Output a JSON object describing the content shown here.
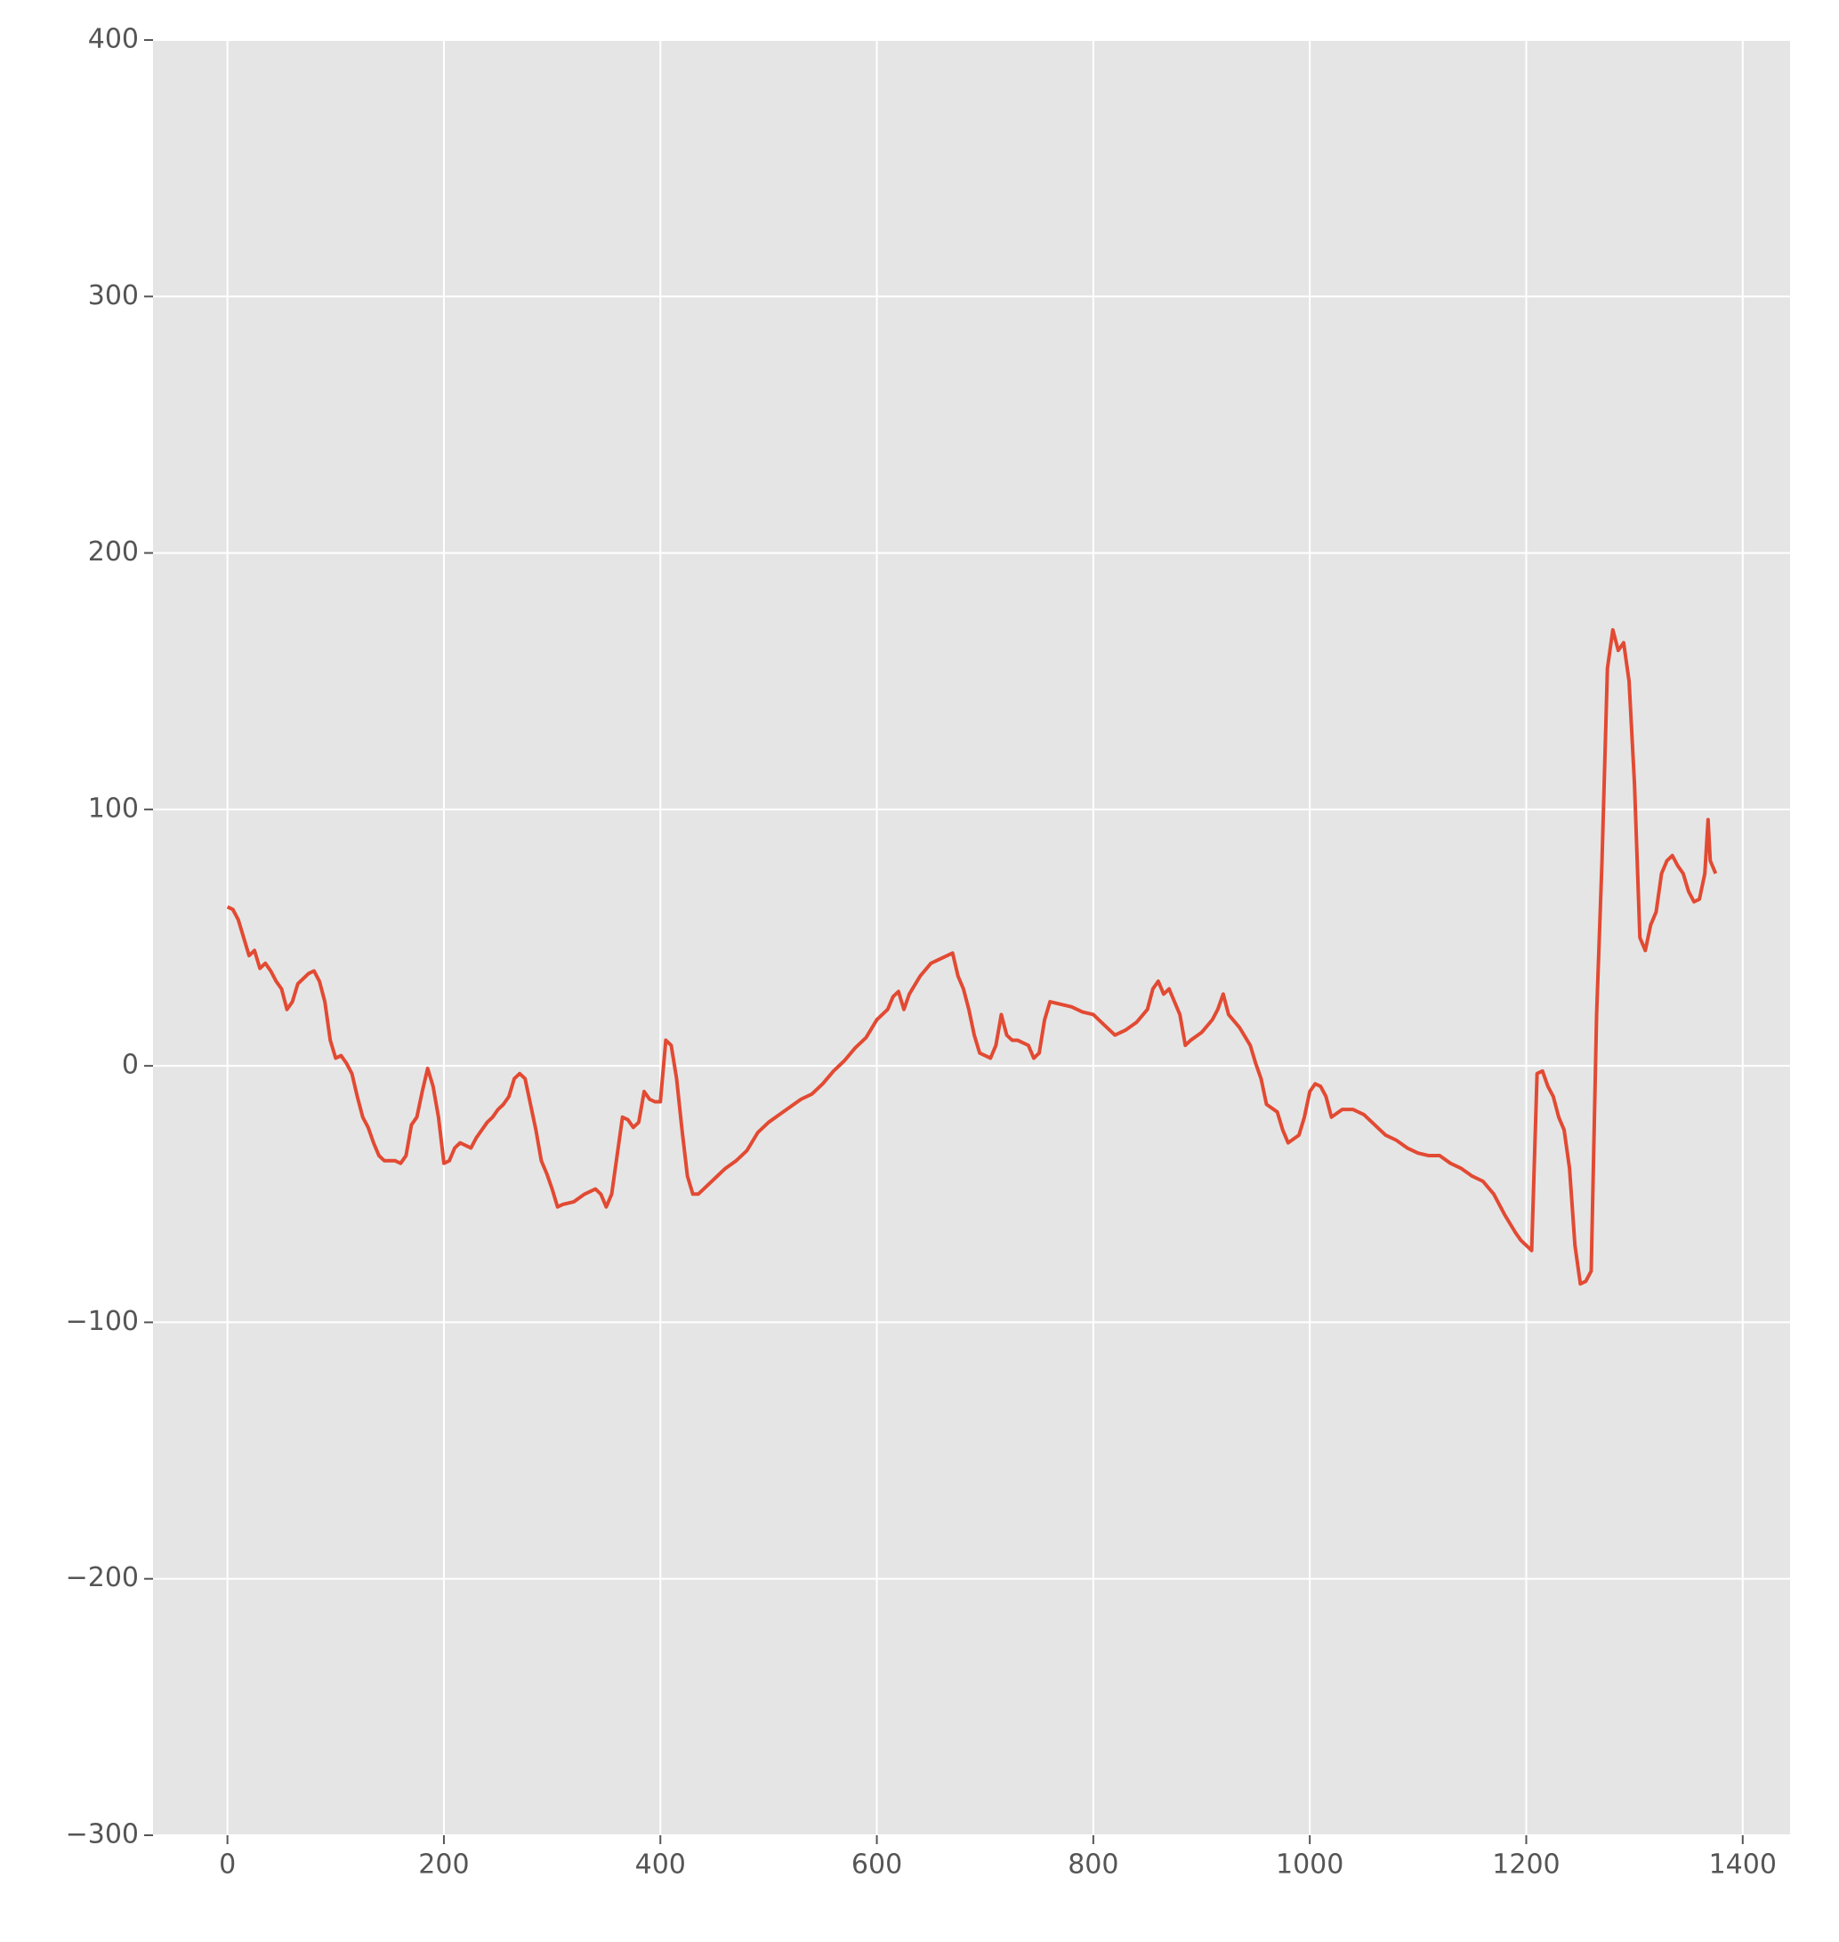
{
  "chart_data": {
    "type": "line",
    "x": [
      0,
      5,
      10,
      15,
      20,
      25,
      30,
      35,
      40,
      45,
      50,
      55,
      60,
      65,
      70,
      75,
      80,
      85,
      90,
      95,
      100,
      105,
      110,
      115,
      120,
      125,
      130,
      135,
      140,
      145,
      150,
      155,
      160,
      165,
      170,
      175,
      180,
      185,
      190,
      195,
      200,
      205,
      210,
      215,
      220,
      225,
      230,
      235,
      240,
      245,
      250,
      255,
      260,
      265,
      270,
      275,
      280,
      285,
      290,
      295,
      300,
      305,
      310,
      320,
      330,
      340,
      345,
      350,
      355,
      360,
      365,
      370,
      375,
      380,
      385,
      390,
      395,
      400,
      405,
      410,
      415,
      420,
      425,
      430,
      435,
      440,
      450,
      460,
      470,
      480,
      490,
      500,
      510,
      520,
      530,
      540,
      550,
      560,
      570,
      580,
      590,
      600,
      610,
      615,
      620,
      625,
      630,
      640,
      650,
      660,
      665,
      670,
      675,
      680,
      685,
      690,
      695,
      700,
      705,
      710,
      715,
      720,
      725,
      730,
      740,
      745,
      750,
      755,
      760,
      770,
      780,
      790,
      800,
      810,
      820,
      830,
      840,
      850,
      855,
      860,
      865,
      870,
      875,
      880,
      885,
      890,
      900,
      910,
      915,
      920,
      925,
      935,
      945,
      950,
      955,
      960,
      970,
      975,
      980,
      990,
      995,
      1000,
      1005,
      1010,
      1015,
      1020,
      1030,
      1040,
      1050,
      1060,
      1070,
      1080,
      1090,
      1100,
      1110,
      1120,
      1130,
      1140,
      1150,
      1160,
      1170,
      1180,
      1190,
      1195,
      1200,
      1205,
      1210,
      1215,
      1220,
      1225,
      1230,
      1235,
      1240,
      1245,
      1250,
      1255,
      1260,
      1265,
      1270,
      1275,
      1280,
      1285,
      1290,
      1295,
      1300,
      1305,
      1310,
      1315,
      1320,
      1325,
      1330,
      1335,
      1340,
      1345,
      1350,
      1355,
      1360,
      1365,
      1368,
      1370,
      1375
    ],
    "series": [
      {
        "color": "#E24A33",
        "values": [
          62,
          61,
          57,
          50,
          43,
          45,
          38,
          40,
          37,
          33,
          30,
          22,
          25,
          32,
          34,
          36,
          37,
          33,
          25,
          10,
          3,
          4,
          1,
          -3,
          -12,
          -20,
          -24,
          -30,
          -35,
          -37,
          -37,
          -37,
          -38,
          -35,
          -23,
          -20,
          -10,
          -1,
          -8,
          -20,
          -38,
          -37,
          -32,
          -30,
          -31,
          -32,
          -28,
          -25,
          -22,
          -20,
          -17,
          -15,
          -12,
          -5,
          -3,
          -5,
          -15,
          -25,
          -37,
          -42,
          -48,
          -55,
          -54,
          -53,
          -50,
          -48,
          -50,
          -55,
          -50,
          -35,
          -20,
          -21,
          -24,
          -22,
          -10,
          -13,
          -14,
          -14,
          10,
          8,
          -5,
          -25,
          -43,
          -50,
          -50,
          -48,
          -44,
          -40,
          -37,
          -33,
          -26,
          -22,
          -19,
          -16,
          -13,
          -11,
          -7,
          -2,
          2,
          7,
          11,
          18,
          22,
          27,
          29,
          22,
          28,
          35,
          40,
          42,
          43,
          44,
          35,
          30,
          22,
          12,
          5,
          4,
          3,
          8,
          20,
          12,
          10,
          10,
          8,
          3,
          5,
          18,
          25,
          24,
          23,
          21,
          20,
          16,
          12,
          14,
          17,
          22,
          30,
          33,
          28,
          30,
          25,
          20,
          8,
          10,
          13,
          18,
          22,
          28,
          20,
          15,
          8,
          1,
          -5,
          -15,
          -18,
          -25,
          -30,
          -27,
          -20,
          -10,
          -7,
          -8,
          -12,
          -20,
          -17,
          -17,
          -19,
          -23,
          -27,
          -29,
          -32,
          -34,
          -35,
          -35,
          -38,
          -40,
          -43,
          -45,
          -50,
          -58,
          -65,
          -68,
          -70,
          -72,
          -3,
          -2,
          -8,
          -12,
          -20,
          -25,
          -40,
          -70,
          -85,
          -84,
          -80,
          20,
          80,
          155,
          170,
          162,
          165,
          150,
          110,
          50,
          45,
          55,
          60,
          75,
          80,
          82,
          78,
          75,
          68,
          64,
          65,
          75,
          96,
          80,
          75
        ]
      }
    ],
    "xlim": [
      -68.75,
      1443.75
    ],
    "ylim": [
      -300,
      400
    ],
    "xticks": [
      0,
      200,
      400,
      600,
      800,
      1000,
      1200,
      1400
    ],
    "yticks": [
      {
        "value": -300,
        "label": "−300"
      },
      {
        "value": -200,
        "label": "−200"
      },
      {
        "value": -100,
        "label": "−100"
      },
      0,
      100,
      200,
      300,
      400
    ],
    "grid": true
  }
}
